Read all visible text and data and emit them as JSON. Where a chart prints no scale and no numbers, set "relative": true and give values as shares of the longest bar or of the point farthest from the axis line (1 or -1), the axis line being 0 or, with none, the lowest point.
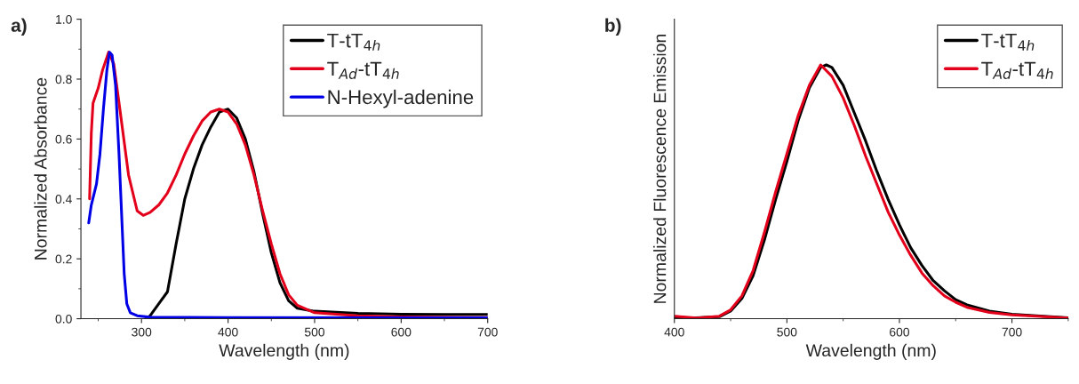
{
  "chart_data": [
    {
      "type": "line",
      "title": "a)",
      "xlabel": "Wavelength (nm)",
      "ylabel": "Normalized Absorbance",
      "xlim": [
        230,
        700
      ],
      "ylim": [
        0,
        1.0
      ],
      "xticks": [
        300,
        400,
        500,
        600,
        700
      ],
      "yticks": [
        {
          "value": 0,
          "label": "0.0"
        },
        0.2,
        0.4,
        0.6,
        0.8,
        {
          "value": 1,
          "label": "1.0"
        }
      ],
      "legend": "top right",
      "line_style": "solid",
      "marker": "none",
      "series": [
        {
          "name": "T-tT$_{4h}$",
          "color": "#000000",
          "x": [
            305,
            310,
            320,
            330,
            340,
            350,
            360,
            370,
            380,
            390,
            400,
            410,
            420,
            430,
            440,
            450,
            460,
            470,
            480,
            500,
            550,
            600,
            650,
            700
          ],
          "values": [
            0.0,
            0.01,
            0.05,
            0.09,
            0.25,
            0.4,
            0.5,
            0.58,
            0.64,
            0.69,
            0.7,
            0.67,
            0.6,
            0.49,
            0.35,
            0.22,
            0.12,
            0.06,
            0.035,
            0.025,
            0.018,
            0.015,
            0.014,
            0.014
          ]
        },
        {
          "name": "T$_{Ad}$-tT$_{4h}$",
          "color": "#e3001b",
          "x": [
            240,
            242,
            244,
            250,
            255,
            262,
            268,
            275,
            285,
            295,
            302,
            310,
            320,
            330,
            340,
            350,
            360,
            370,
            380,
            390,
            400,
            410,
            420,
            430,
            440,
            450,
            460,
            470,
            480,
            500,
            550,
            600,
            700
          ],
          "values": [
            0.4,
            0.62,
            0.72,
            0.77,
            0.83,
            0.89,
            0.85,
            0.7,
            0.48,
            0.36,
            0.345,
            0.355,
            0.38,
            0.42,
            0.48,
            0.55,
            0.61,
            0.66,
            0.69,
            0.7,
            0.69,
            0.65,
            0.58,
            0.48,
            0.36,
            0.25,
            0.15,
            0.08,
            0.045,
            0.02,
            0.01,
            0.006,
            0.004
          ]
        },
        {
          "name": "N-Hexyl-adenine",
          "color": "#0000e6",
          "x": [
            239,
            242,
            248,
            252,
            256,
            260,
            263,
            266,
            270,
            274,
            277,
            280,
            283,
            287,
            295,
            310,
            400,
            700
          ],
          "values": [
            0.32,
            0.38,
            0.45,
            0.55,
            0.7,
            0.83,
            0.89,
            0.88,
            0.78,
            0.55,
            0.35,
            0.15,
            0.05,
            0.02,
            0.01,
            0.005,
            0.004,
            0.003
          ]
        }
      ]
    },
    {
      "type": "line",
      "title": "b)",
      "xlabel": "Wavelength (nm)",
      "ylabel": "Normalized Fluorescence Emission",
      "xlim": [
        400,
        750
      ],
      "xticks": [
        400,
        500,
        600,
        700
      ],
      "relative": true,
      "tick_labels": "x",
      "legend": "top right",
      "line_style": "solid",
      "marker": "none",
      "series": [
        {
          "name": "T-tT$_{4h}$",
          "color": "#000000",
          "x": [
            400,
            440,
            450,
            460,
            470,
            480,
            490,
            500,
            510,
            520,
            530,
            535,
            540,
            550,
            560,
            570,
            580,
            590,
            600,
            610,
            620,
            630,
            640,
            650,
            660,
            680,
            700,
            750
          ],
          "values": [
            0.0,
            0.008,
            0.03,
            0.08,
            0.17,
            0.31,
            0.47,
            0.62,
            0.78,
            0.91,
            0.99,
            1.0,
            0.99,
            0.92,
            0.81,
            0.7,
            0.58,
            0.47,
            0.37,
            0.28,
            0.21,
            0.15,
            0.11,
            0.075,
            0.055,
            0.03,
            0.018,
            0.004
          ]
        },
        {
          "name": "T$_{Ad}$-tT$_{4h}$",
          "color": "#e3001b",
          "x": [
            400,
            420,
            440,
            450,
            460,
            470,
            480,
            490,
            500,
            510,
            520,
            530,
            540,
            550,
            560,
            570,
            580,
            590,
            600,
            610,
            620,
            630,
            640,
            650,
            660,
            680,
            700,
            750
          ],
          "values": [
            0.01,
            0.003,
            0.01,
            0.035,
            0.09,
            0.19,
            0.34,
            0.5,
            0.65,
            0.8,
            0.92,
            1.0,
            0.955,
            0.87,
            0.76,
            0.64,
            0.53,
            0.42,
            0.33,
            0.25,
            0.18,
            0.13,
            0.09,
            0.065,
            0.045,
            0.025,
            0.015,
            0.003
          ]
        }
      ]
    }
  ]
}
